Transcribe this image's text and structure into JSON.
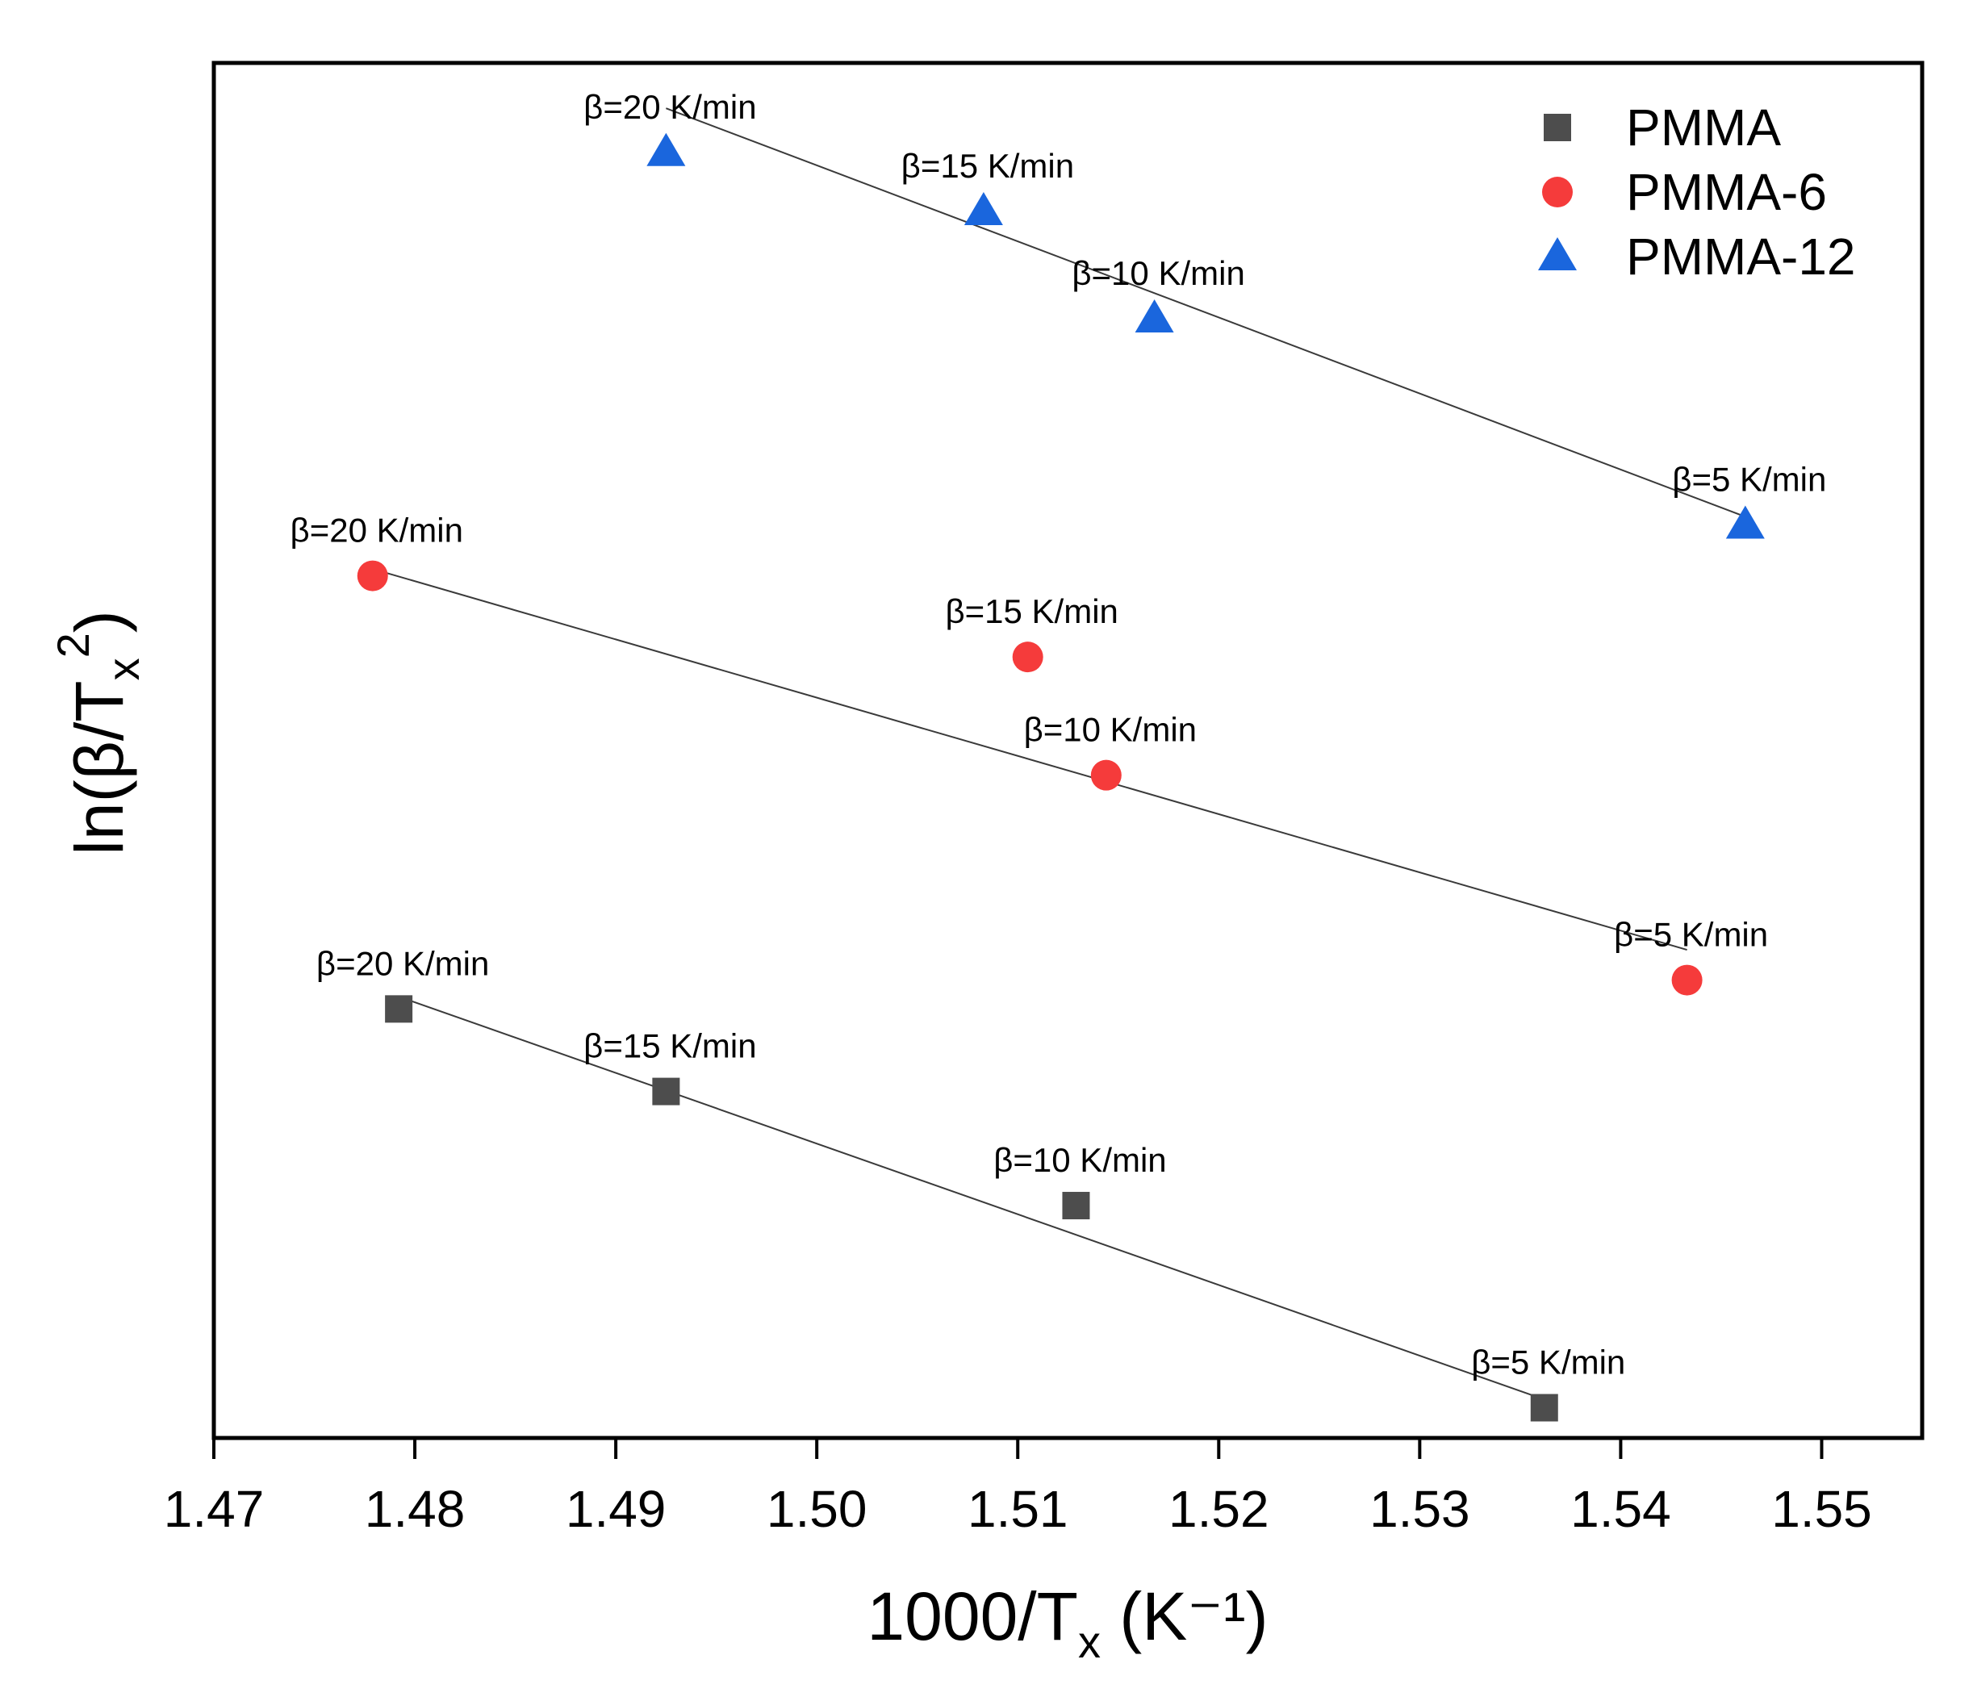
{
  "chart_data": {
    "type": "scatter",
    "xlabel": {
      "main": "1000/T",
      "sub": "x",
      "tail": " (K⁻¹)"
    },
    "ylabel": {
      "main": "ln(β/T",
      "sub": "x",
      "sup": "2",
      "tail": ")"
    },
    "xlim": [
      1.47,
      1.555
    ],
    "xticks": [
      1.47,
      1.48,
      1.49,
      1.5,
      1.51,
      1.52,
      1.53,
      1.54,
      1.55
    ],
    "xtick_labels": [
      "1.47",
      "1.48",
      "1.49",
      "1.50",
      "1.51",
      "1.52",
      "1.53",
      "1.54",
      "1.55"
    ],
    "ylim": [
      0,
      100
    ],
    "yticks_shown": false,
    "legend_position": "top-right",
    "series": [
      {
        "name": "PMMA",
        "marker": "square",
        "color": "#4d4d4d",
        "points": [
          {
            "x": 1.4792,
            "y": 31.2,
            "label": "β=20 K/min"
          },
          {
            "x": 1.4925,
            "y": 25.2,
            "label": "β=15 K/min"
          },
          {
            "x": 1.5129,
            "y": 16.9,
            "label": "β=10 K/min"
          },
          {
            "x": 1.5362,
            "y": 2.2,
            "label": "β=5 K/min"
          }
        ],
        "fit": {
          "x": [
            1.4792,
            1.5362
          ],
          "y": [
            32.1,
            2.8
          ]
        }
      },
      {
        "name": "PMMA-6",
        "marker": "circle",
        "color": "#f53b3b",
        "points": [
          {
            "x": 1.4779,
            "y": 62.7,
            "label": "β=20 K/min"
          },
          {
            "x": 1.5105,
            "y": 56.8,
            "label": "β=15 K/min"
          },
          {
            "x": 1.5144,
            "y": 48.2,
            "label": "β=10 K/min"
          },
          {
            "x": 1.5433,
            "y": 33.3,
            "label": "β=5 K/min"
          }
        ],
        "fit": {
          "x": [
            1.4779,
            1.5433
          ],
          "y": [
            63.2,
            35.5
          ]
        }
      },
      {
        "name": "PMMA-12",
        "marker": "triangle",
        "color": "#1a66dd",
        "points": [
          {
            "x": 1.4925,
            "y": 93.5,
            "label": "β=20 K/min"
          },
          {
            "x": 1.5083,
            "y": 89.2,
            "label": "β=15 K/min"
          },
          {
            "x": 1.5168,
            "y": 81.4,
            "label": "β=10 K/min"
          },
          {
            "x": 1.5462,
            "y": 66.4,
            "label": "β=5 K/min"
          }
        ],
        "fit": {
          "x": [
            1.4925,
            1.5462
          ],
          "y": [
            96.7,
            67.0
          ]
        }
      }
    ]
  }
}
